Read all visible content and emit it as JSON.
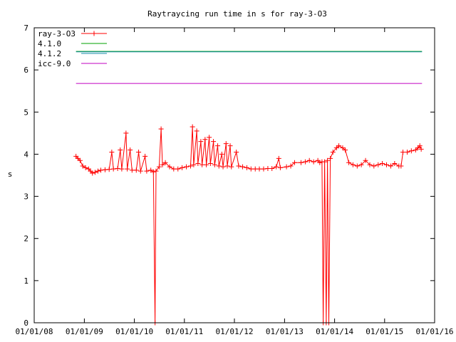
{
  "chart_data": {
    "type": "line",
    "title": "Raytraycing run time in s for ray-3-O3",
    "xlabel": "",
    "ylabel": "s",
    "ylim": [
      0,
      7
    ],
    "xlim": [
      "2008-01-01",
      "2016-01-01"
    ],
    "x_ticks": [
      "01/01/08",
      "01/01/09",
      "01/01/10",
      "01/01/11",
      "01/01/12",
      "01/01/13",
      "01/01/14",
      "01/01/15",
      "01/01/16"
    ],
    "x_tick_dates": [
      "2008-01-01",
      "2009-01-01",
      "2010-01-01",
      "2011-01-01",
      "2012-01-01",
      "2013-01-01",
      "2014-01-01",
      "2015-01-01",
      "2016-01-01"
    ],
    "y_ticks": [
      0,
      1,
      2,
      3,
      4,
      5,
      6,
      7
    ],
    "legend_position": "top-left",
    "series": [
      {
        "name": "ray-3-O3",
        "color": "#ff0000",
        "marker": "plus",
        "points": [
          [
            "2008-11-01",
            3.95
          ],
          [
            "2008-11-15",
            3.9
          ],
          [
            "2008-12-01",
            3.85
          ],
          [
            "2008-12-20",
            3.72
          ],
          [
            "2009-01-10",
            3.68
          ],
          [
            "2009-02-01",
            3.65
          ],
          [
            "2009-02-15",
            3.6
          ],
          [
            "2009-03-01",
            3.55
          ],
          [
            "2009-03-20",
            3.57
          ],
          [
            "2009-04-10",
            3.6
          ],
          [
            "2009-05-01",
            3.62
          ],
          [
            "2009-06-01",
            3.63
          ],
          [
            "2009-07-01",
            3.64
          ],
          [
            "2009-07-20",
            4.05
          ],
          [
            "2009-08-01",
            3.65
          ],
          [
            "2009-09-01",
            3.66
          ],
          [
            "2009-09-20",
            4.1
          ],
          [
            "2009-10-01",
            3.65
          ],
          [
            "2009-11-01",
            4.5
          ],
          [
            "2009-11-10",
            3.65
          ],
          [
            "2009-12-01",
            4.1
          ],
          [
            "2009-12-15",
            3.62
          ],
          [
            "2010-01-15",
            3.62
          ],
          [
            "2010-02-01",
            4.05
          ],
          [
            "2010-02-15",
            3.6
          ],
          [
            "2010-03-20",
            3.95
          ],
          [
            "2010-04-01",
            3.6
          ],
          [
            "2010-05-01",
            3.62
          ],
          [
            "2010-05-20",
            3.58
          ],
          [
            "2010-06-01",
            0.0
          ],
          [
            "2010-06-08",
            3.6
          ],
          [
            "2010-07-01",
            3.7
          ],
          [
            "2010-07-15",
            4.6
          ],
          [
            "2010-07-25",
            3.75
          ],
          [
            "2010-08-15",
            3.8
          ],
          [
            "2010-09-15",
            3.7
          ],
          [
            "2010-10-15",
            3.65
          ],
          [
            "2010-11-15",
            3.65
          ],
          [
            "2010-12-15",
            3.68
          ],
          [
            "2011-01-15",
            3.7
          ],
          [
            "2011-02-15",
            3.72
          ],
          [
            "2011-03-01",
            4.65
          ],
          [
            "2011-03-10",
            3.75
          ],
          [
            "2011-04-01",
            4.55
          ],
          [
            "2011-04-10",
            3.78
          ],
          [
            "2011-05-01",
            4.3
          ],
          [
            "2011-05-10",
            3.75
          ],
          [
            "2011-06-01",
            4.35
          ],
          [
            "2011-06-10",
            3.75
          ],
          [
            "2011-07-01",
            4.4
          ],
          [
            "2011-07-10",
            3.78
          ],
          [
            "2011-08-01",
            4.3
          ],
          [
            "2011-08-10",
            3.75
          ],
          [
            "2011-09-01",
            4.2
          ],
          [
            "2011-09-10",
            3.72
          ],
          [
            "2011-10-01",
            4.0
          ],
          [
            "2011-10-10",
            3.7
          ],
          [
            "2011-11-01",
            4.25
          ],
          [
            "2011-11-10",
            3.72
          ],
          [
            "2011-12-01",
            4.2
          ],
          [
            "2011-12-10",
            3.7
          ],
          [
            "2012-01-15",
            4.05
          ],
          [
            "2012-02-01",
            3.72
          ],
          [
            "2012-03-01",
            3.7
          ],
          [
            "2012-04-01",
            3.68
          ],
          [
            "2012-05-01",
            3.65
          ],
          [
            "2012-06-01",
            3.65
          ],
          [
            "2012-07-01",
            3.65
          ],
          [
            "2012-08-01",
            3.65
          ],
          [
            "2012-09-01",
            3.66
          ],
          [
            "2012-10-01",
            3.66
          ],
          [
            "2012-11-01",
            3.7
          ],
          [
            "2012-11-20",
            3.9
          ],
          [
            "2012-12-01",
            3.68
          ],
          [
            "2013-01-15",
            3.7
          ],
          [
            "2013-02-15",
            3.72
          ],
          [
            "2013-03-15",
            3.8
          ],
          [
            "2013-05-01",
            3.8
          ],
          [
            "2013-06-01",
            3.82
          ],
          [
            "2013-07-01",
            3.85
          ],
          [
            "2013-08-01",
            3.82
          ],
          [
            "2013-09-01",
            3.85
          ],
          [
            "2013-09-15",
            3.8
          ],
          [
            "2013-10-01",
            3.82
          ],
          [
            "2013-10-10",
            0.0
          ],
          [
            "2013-10-20",
            3.82
          ],
          [
            "2013-11-01",
            0.0
          ],
          [
            "2013-11-10",
            3.85
          ],
          [
            "2013-11-20",
            0.0
          ],
          [
            "2013-12-01",
            3.9
          ],
          [
            "2013-12-20",
            4.05
          ],
          [
            "2014-01-15",
            4.15
          ],
          [
            "2014-02-01",
            4.2
          ],
          [
            "2014-03-01",
            4.15
          ],
          [
            "2014-03-20",
            4.1
          ],
          [
            "2014-04-15",
            3.8
          ],
          [
            "2014-05-15",
            3.75
          ],
          [
            "2014-06-15",
            3.72
          ],
          [
            "2014-07-15",
            3.75
          ],
          [
            "2014-08-15",
            3.85
          ],
          [
            "2014-09-15",
            3.75
          ],
          [
            "2014-10-15",
            3.72
          ],
          [
            "2014-11-15",
            3.75
          ],
          [
            "2014-12-15",
            3.78
          ],
          [
            "2015-01-15",
            3.75
          ],
          [
            "2015-02-15",
            3.72
          ],
          [
            "2015-03-15",
            3.78
          ],
          [
            "2015-04-15",
            3.72
          ],
          [
            "2015-05-01",
            3.72
          ],
          [
            "2015-05-15",
            4.05
          ],
          [
            "2015-06-15",
            4.05
          ],
          [
            "2015-07-15",
            4.08
          ],
          [
            "2015-08-15",
            4.1
          ],
          [
            "2015-09-01",
            4.15
          ],
          [
            "2015-09-15",
            4.2
          ],
          [
            "2015-09-25",
            4.12
          ]
        ]
      },
      {
        "name": "4.1.0",
        "color": "#00a000",
        "marker": "none",
        "points": [
          [
            "2008-11-01",
            6.44
          ],
          [
            "2015-10-01",
            6.44
          ]
        ]
      },
      {
        "name": "4.1.2",
        "color": "#1a8ca8",
        "marker": "none",
        "points": [
          [
            "2008-11-01",
            6.43
          ],
          [
            "2015-10-01",
            6.43
          ]
        ]
      },
      {
        "name": "icc-9.0",
        "color": "#c000c0",
        "marker": "none",
        "points": [
          [
            "2008-11-01",
            5.68
          ],
          [
            "2015-10-01",
            5.68
          ]
        ]
      }
    ]
  }
}
